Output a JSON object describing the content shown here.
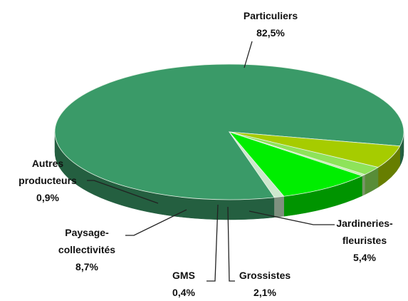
{
  "chart_data": {
    "type": "pie",
    "categories": [
      "Particuliers",
      "Jardineries-fleuristes",
      "Grossistes",
      "GMS",
      "Paysage-collectivités",
      "Autres producteurs"
    ],
    "values": [
      82.5,
      5.4,
      2.1,
      0.4,
      8.7,
      0.9
    ],
    "value_labels": [
      "82,5%",
      "5,4%",
      "2,1%",
      "0,4%",
      "8,7%",
      "0,9%"
    ],
    "colors": [
      "#3a9a68",
      "#a6cc00",
      "#8ee35a",
      "#c4f0a8",
      "#00ee00",
      "#cde8cd"
    ]
  }
}
